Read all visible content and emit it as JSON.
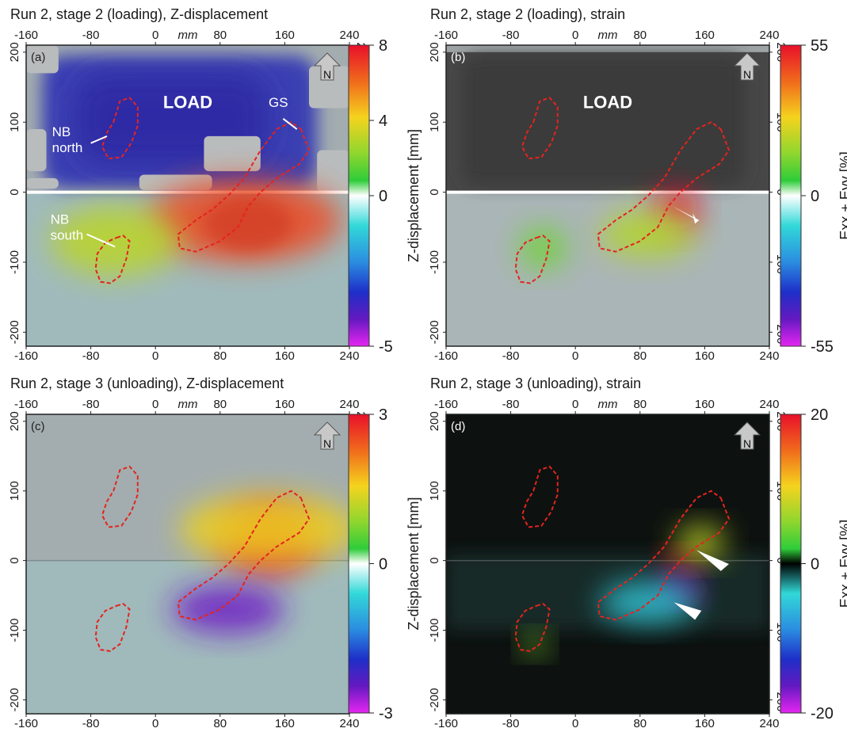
{
  "figure": {
    "panels": [
      {
        "id": "a",
        "title": "Run 2, stage 2 (loading), Z-displacement",
        "letter": "(a)",
        "unit_label": "mm",
        "background": "light",
        "load_label": "LOAD",
        "colorbar": {
          "ticks": [
            "8",
            "4",
            "0",
            "-5"
          ],
          "label": "Z-displacement [mm]",
          "min": -5,
          "max": 8
        },
        "annotations": [
          {
            "id": "nb-north",
            "lines": [
              "NB",
              "north"
            ]
          },
          {
            "id": "nb-south",
            "lines": [
              "NB",
              "south"
            ]
          },
          {
            "id": "gs",
            "lines": [
              "GS"
            ]
          }
        ]
      },
      {
        "id": "b",
        "title": "Run 2, stage 2 (loading), strain",
        "letter": "(b)",
        "unit_label": "mm",
        "background": "dark",
        "load_label": "LOAD",
        "colorbar": {
          "ticks": [
            "55",
            "0",
            "-55"
          ],
          "label": "Exx + Eyy [%]",
          "min": -55,
          "max": 55
        },
        "annotations": []
      },
      {
        "id": "c",
        "title": "Run 2, stage 3 (unloading), Z-displacement",
        "letter": "(c)",
        "unit_label": "mm",
        "background": "light",
        "load_label": "",
        "colorbar": {
          "ticks": [
            "3",
            "0",
            "-3"
          ],
          "label": "Z-displacement [mm]",
          "min": -3,
          "max": 3
        },
        "annotations": []
      },
      {
        "id": "d",
        "title": "Run 2, stage 3 (unloading), strain",
        "letter": "(d)",
        "unit_label": "mm",
        "background": "black",
        "load_label": "",
        "colorbar": {
          "ticks": [
            "20",
            "0",
            "-20"
          ],
          "label": "Exx + Eyy [%]",
          "min": -20,
          "max": 20
        },
        "annotations": []
      }
    ],
    "north_label": "N"
  },
  "chart_data": [
    {
      "type": "heatmap",
      "title": "Run 2, stage 2 (loading), Z-displacement",
      "x_ticks": [
        "-160",
        "-80",
        "0",
        "80",
        "160",
        "240"
      ],
      "y_ticks": [
        "200",
        "100",
        "0",
        "-100",
        "-200"
      ],
      "xlim": [
        -160,
        240
      ],
      "ylim": [
        -220,
        210
      ],
      "colorbar": {
        "label": "Z-displacement [mm]",
        "range": [
          -5,
          8
        ]
      },
      "field_blobs": [
        {
          "cx": 110,
          "cy": -40,
          "rx": 120,
          "ry": 60,
          "value": 7
        },
        {
          "cx": -50,
          "cy": -70,
          "rx": 80,
          "ry": 50,
          "value": 4
        }
      ],
      "loaded_region_y": [
        0,
        200
      ],
      "loaded_region_value": -2.5
    },
    {
      "type": "heatmap",
      "title": "Run 2, stage 2 (loading), strain",
      "x_ticks": [
        "-160",
        "-80",
        "0",
        "80",
        "160",
        "240"
      ],
      "y_ticks": [
        "200",
        "100",
        "0",
        "-100",
        "-200"
      ],
      "xlim": [
        -160,
        240
      ],
      "ylim": [
        -220,
        210
      ],
      "colorbar": {
        "label": "Exx + Eyy [%]",
        "range": [
          -55,
          55
        ]
      },
      "field_blobs": [
        {
          "cx": 125,
          "cy": -25,
          "rx": 28,
          "ry": 30,
          "value": 55
        },
        {
          "cx": 90,
          "cy": -60,
          "rx": 60,
          "ry": 35,
          "value": 20
        },
        {
          "cx": -40,
          "cy": -80,
          "rx": 30,
          "ry": 30,
          "value": 12
        }
      ],
      "loaded_region_y": [
        0,
        200
      ]
    },
    {
      "type": "heatmap",
      "title": "Run 2, stage 3 (unloading), Z-displacement",
      "x_ticks": [
        "-160",
        "-80",
        "0",
        "80",
        "160",
        "240"
      ],
      "y_ticks": [
        "200",
        "100",
        "0",
        "-100",
        "-200"
      ],
      "xlim": [
        -160,
        240
      ],
      "ylim": [
        -220,
        210
      ],
      "colorbar": {
        "label": "Z-displacement [mm]",
        "range": [
          -3,
          3
        ]
      },
      "field_blobs": [
        {
          "cx": 140,
          "cy": 30,
          "rx": 60,
          "ry": 50,
          "value": 3
        },
        {
          "cx": 140,
          "cy": 45,
          "rx": 110,
          "ry": 50,
          "value": 1.5
        },
        {
          "cx": 90,
          "cy": -70,
          "rx": 70,
          "ry": 35,
          "value": -2.5
        }
      ]
    },
    {
      "type": "heatmap",
      "title": "Run 2, stage 3 (unloading), strain",
      "x_ticks": [
        "-160",
        "-80",
        "0",
        "80",
        "160",
        "240"
      ],
      "y_ticks": [
        "200",
        "100",
        "0",
        "-100",
        "-200"
      ],
      "xlim": [
        -160,
        240
      ],
      "ylim": [
        -220,
        210
      ],
      "colorbar": {
        "label": "Exx + Eyy [%]",
        "range": [
          -20,
          20
        ]
      },
      "field_blobs": [
        {
          "cx": 130,
          "cy": 0,
          "rx": 20,
          "ry": 14,
          "value": 20
        },
        {
          "cx": 155,
          "cy": 25,
          "rx": 30,
          "ry": 25,
          "value": 8
        },
        {
          "cx": 130,
          "cy": -40,
          "rx": 25,
          "ry": 18,
          "value": -18
        },
        {
          "cx": 90,
          "cy": -60,
          "rx": 60,
          "ry": 30,
          "value": -5
        },
        {
          "cx": -50,
          "cy": -120,
          "rx": 15,
          "ry": 15,
          "value": 5
        }
      ]
    }
  ]
}
